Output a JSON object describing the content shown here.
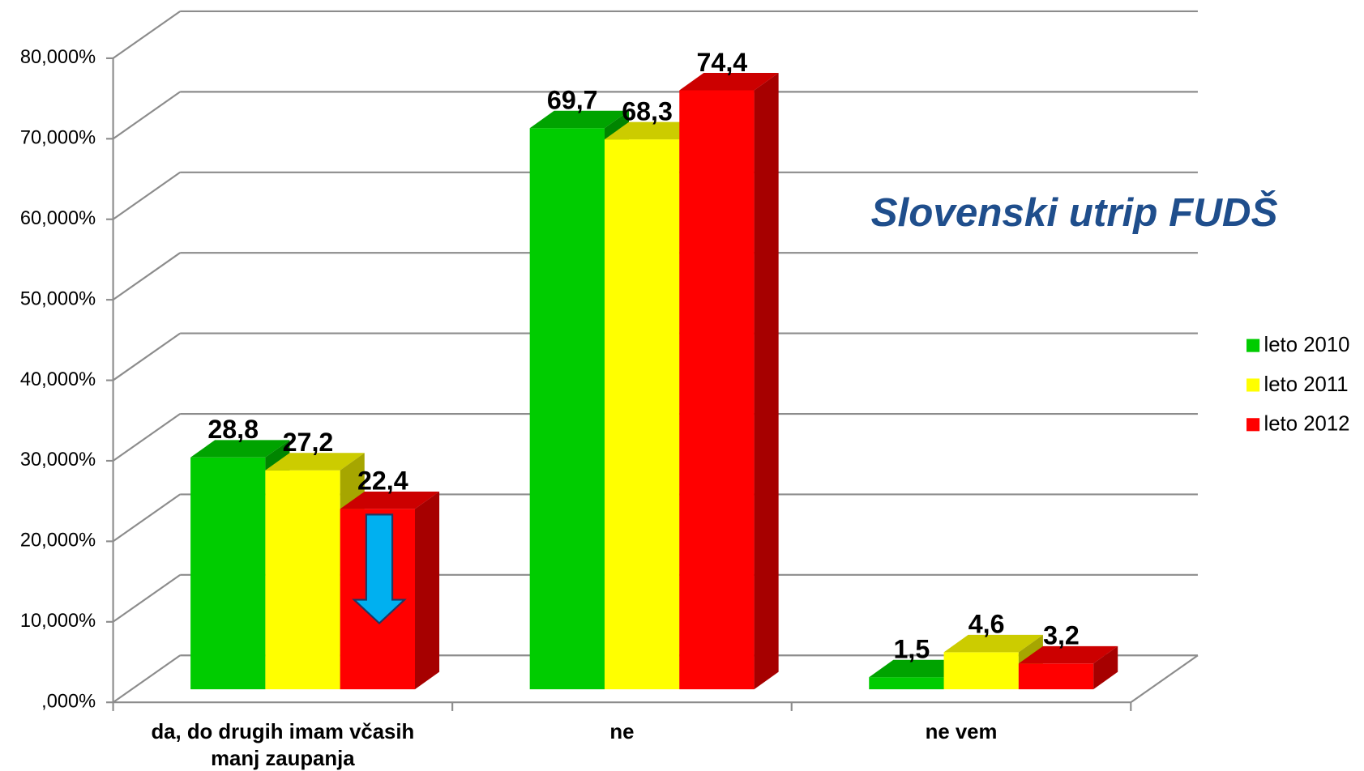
{
  "chart_data": {
    "type": "bar3d",
    "annotation": "Slovenski utrip FUDŠ",
    "categories": [
      "da, do drugih imam včasih\nmanj zaupanja",
      "ne",
      "ne vem"
    ],
    "series": [
      {
        "name": "leto 2010",
        "color": "#00cc00",
        "values": [
          28.8,
          69.7,
          1.5
        ],
        "value_labels": [
          "28,8",
          "69,7",
          "1,5"
        ]
      },
      {
        "name": "leto 2011",
        "color": "#ffff00",
        "values": [
          27.2,
          68.3,
          4.6
        ],
        "value_labels": [
          "27,2",
          "68,3",
          "4,6"
        ]
      },
      {
        "name": "leto 2012",
        "color": "#ff0000",
        "values": [
          22.4,
          74.4,
          3.2
        ],
        "value_labels": [
          "22,4",
          "74,4",
          "3,2"
        ]
      }
    ],
    "ylim": [
      0,
      80
    ],
    "yticks": [
      {
        "value": 0,
        "label": ",000%"
      },
      {
        "value": 10,
        "label": "10,000%"
      },
      {
        "value": 20,
        "label": "20,000%"
      },
      {
        "value": 30,
        "label": "30,000%"
      },
      {
        "value": 40,
        "label": "40,000%"
      },
      {
        "value": 50,
        "label": "50,000%"
      },
      {
        "value": 60,
        "label": "60,000%"
      },
      {
        "value": 70,
        "label": "70,000%"
      },
      {
        "value": 80,
        "label": "80,000%"
      }
    ],
    "grid": true,
    "legend": "right"
  }
}
